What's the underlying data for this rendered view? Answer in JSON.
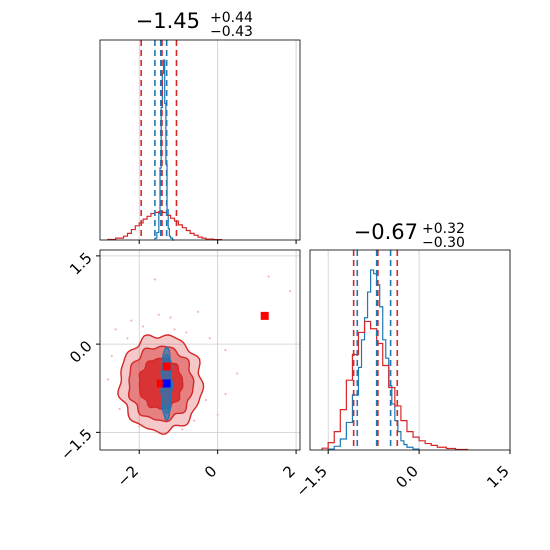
{
  "colors": {
    "red": "#d62728",
    "blue": "#1f77b4",
    "truth_square": "#ff0000",
    "truth_square_blue": "#0000ff",
    "grid": "#cccccc"
  },
  "chart_data": [
    {
      "panel": "top-left",
      "type": "histogram",
      "title": {
        "value": "−1.45",
        "plus": "+0.44",
        "minus": "−0.43"
      },
      "xlim": [
        -3.0,
        2.1
      ],
      "xticks": [
        -2,
        0,
        2
      ],
      "grid": true,
      "series": [
        {
          "color_key": "blue",
          "bin_edges": [
            -1.6,
            -1.55,
            -1.5,
            -1.47,
            -1.44,
            -1.41,
            -1.38,
            -1.35,
            -1.32,
            -1.29,
            -1.26,
            -1.23,
            -1.2,
            -1.15,
            -1.1
          ],
          "counts": [
            0.01,
            0.04,
            0.14,
            0.38,
            0.7,
            0.88,
            0.95,
            0.72,
            0.4,
            0.16,
            0.06,
            0.02,
            0.01,
            0.0
          ]
        },
        {
          "color_key": "red",
          "bin_edges": [
            -2.8,
            -2.6,
            -2.4,
            -2.3,
            -2.2,
            -2.1,
            -2.0,
            -1.9,
            -1.8,
            -1.7,
            -1.6,
            -1.5,
            -1.4,
            -1.3,
            -1.2,
            -1.1,
            -1.0,
            -0.9,
            -0.8,
            -0.7,
            -0.6,
            -0.5,
            -0.4,
            -0.3,
            -0.1,
            0.1
          ],
          "counts": [
            0.003,
            0.01,
            0.02,
            0.035,
            0.055,
            0.075,
            0.09,
            0.11,
            0.125,
            0.14,
            0.145,
            0.15,
            0.145,
            0.13,
            0.115,
            0.1,
            0.08,
            0.065,
            0.05,
            0.035,
            0.025,
            0.015,
            0.01,
            0.005,
            0.002
          ]
        }
      ],
      "vlines": [
        {
          "x": -1.95,
          "color_key": "red"
        },
        {
          "x": -1.42,
          "color_key": "red"
        },
        {
          "x": -1.05,
          "color_key": "red"
        },
        {
          "x": -1.6,
          "color_key": "blue"
        },
        {
          "x": -1.45,
          "color_key": "blue"
        },
        {
          "x": -1.3,
          "color_key": "blue"
        }
      ]
    },
    {
      "panel": "bottom-right",
      "type": "histogram",
      "title": {
        "value": "−0.67",
        "plus": "+0.32",
        "minus": "−0.30"
      },
      "xlim": [
        -1.8,
        1.5
      ],
      "xticks": [
        -1.5,
        0.0,
        1.5
      ],
      "xtick_labels": [
        "−1.5",
        "0.0",
        "1.5"
      ],
      "grid": true,
      "series": [
        {
          "color_key": "blue",
          "bin_edges": [
            -1.5,
            -1.4,
            -1.3,
            -1.2,
            -1.1,
            -1.0,
            -0.95,
            -0.9,
            -0.85,
            -0.8,
            -0.75,
            -0.7,
            -0.65,
            -0.6,
            -0.55,
            -0.5,
            -0.45,
            -0.4,
            -0.35,
            -0.3,
            -0.25,
            -0.2,
            -0.1,
            0.0
          ],
          "counts": [
            0.005,
            0.02,
            0.06,
            0.15,
            0.3,
            0.45,
            0.6,
            0.72,
            0.86,
            0.98,
            0.96,
            0.9,
            0.78,
            0.6,
            0.5,
            0.35,
            0.25,
            0.16,
            0.1,
            0.05,
            0.03,
            0.015,
            0.005
          ]
        },
        {
          "color_key": "red",
          "bin_edges": [
            -1.6,
            -1.5,
            -1.4,
            -1.3,
            -1.2,
            -1.1,
            -1.0,
            -0.9,
            -0.8,
            -0.7,
            -0.6,
            -0.5,
            -0.4,
            -0.3,
            -0.2,
            -0.1,
            0.0,
            0.1,
            0.2,
            0.3,
            0.45,
            0.6,
            0.8
          ],
          "counts": [
            0.01,
            0.04,
            0.1,
            0.22,
            0.38,
            0.52,
            0.64,
            0.7,
            0.66,
            0.58,
            0.46,
            0.34,
            0.24,
            0.16,
            0.1,
            0.07,
            0.05,
            0.035,
            0.025,
            0.015,
            0.008,
            0.003
          ]
        }
      ],
      "vlines": [
        {
          "x": -1.08,
          "color_key": "red"
        },
        {
          "x": -0.68,
          "color_key": "red"
        },
        {
          "x": -0.36,
          "color_key": "red"
        },
        {
          "x": -1.02,
          "color_key": "blue"
        },
        {
          "x": -0.7,
          "color_key": "blue"
        },
        {
          "x": -0.47,
          "color_key": "blue"
        }
      ]
    },
    {
      "panel": "bottom-left",
      "type": "scatter-contour",
      "xlim": [
        -3.0,
        2.1
      ],
      "ylim": [
        -1.8,
        1.6
      ],
      "xticks": [
        -2,
        0,
        2
      ],
      "yticks": [
        -1.5,
        0.0,
        1.5
      ],
      "ytick_labels": [
        "−1.5",
        "0.0",
        "1.5"
      ],
      "grid": true,
      "red_contours": {
        "center": [
          -1.45,
          -0.67
        ],
        "levels": [
          {
            "rx": 0.55,
            "ry": 0.43,
            "opacity": 0.85
          },
          {
            "rx": 0.82,
            "ry": 0.63,
            "opacity": 0.45
          },
          {
            "rx": 1.05,
            "ry": 0.82,
            "opacity": 0.25
          }
        ]
      },
      "blue_contours": {
        "center": [
          -1.3,
          -0.67
        ],
        "levels": [
          {
            "rx": 0.1,
            "ry": 0.5
          },
          {
            "rx": 0.13,
            "ry": 0.62
          }
        ]
      },
      "truth_markers": [
        {
          "x": 1.2,
          "y": 0.48,
          "color_key": "truth_square"
        },
        {
          "x": -1.3,
          "y": -0.38,
          "color_key": "truth_square"
        },
        {
          "x": -1.45,
          "y": -0.67,
          "color_key": "truth_square"
        },
        {
          "x": -1.3,
          "y": -0.67,
          "color_key": "truth_square_blue"
        }
      ],
      "scatter_points": [
        [
          1.3,
          1.15
        ],
        [
          1.85,
          0.9
        ],
        [
          -0.5,
          0.55
        ],
        [
          -1.5,
          0.5
        ],
        [
          -2.2,
          0.4
        ],
        [
          -0.8,
          0.2
        ],
        [
          -1.1,
          0.25
        ],
        [
          0.2,
          -0.1
        ],
        [
          -2.7,
          -0.2
        ],
        [
          -2.5,
          -1.1
        ],
        [
          -0.3,
          -0.95
        ],
        [
          0.2,
          -0.85
        ],
        [
          -2.3,
          0.1
        ],
        [
          -0.6,
          -1.3
        ],
        [
          -1.9,
          0.3
        ],
        [
          -1.2,
          0.45
        ],
        [
          -2.8,
          -0.6
        ],
        [
          0.0,
          -1.2
        ],
        [
          -1.6,
          1.1
        ],
        [
          -0.9,
          -1.45
        ],
        [
          -2.0,
          -1.4
        ],
        [
          -0.2,
          0.1
        ],
        [
          -2.6,
          0.25
        ],
        [
          0.5,
          -0.5
        ]
      ]
    }
  ]
}
